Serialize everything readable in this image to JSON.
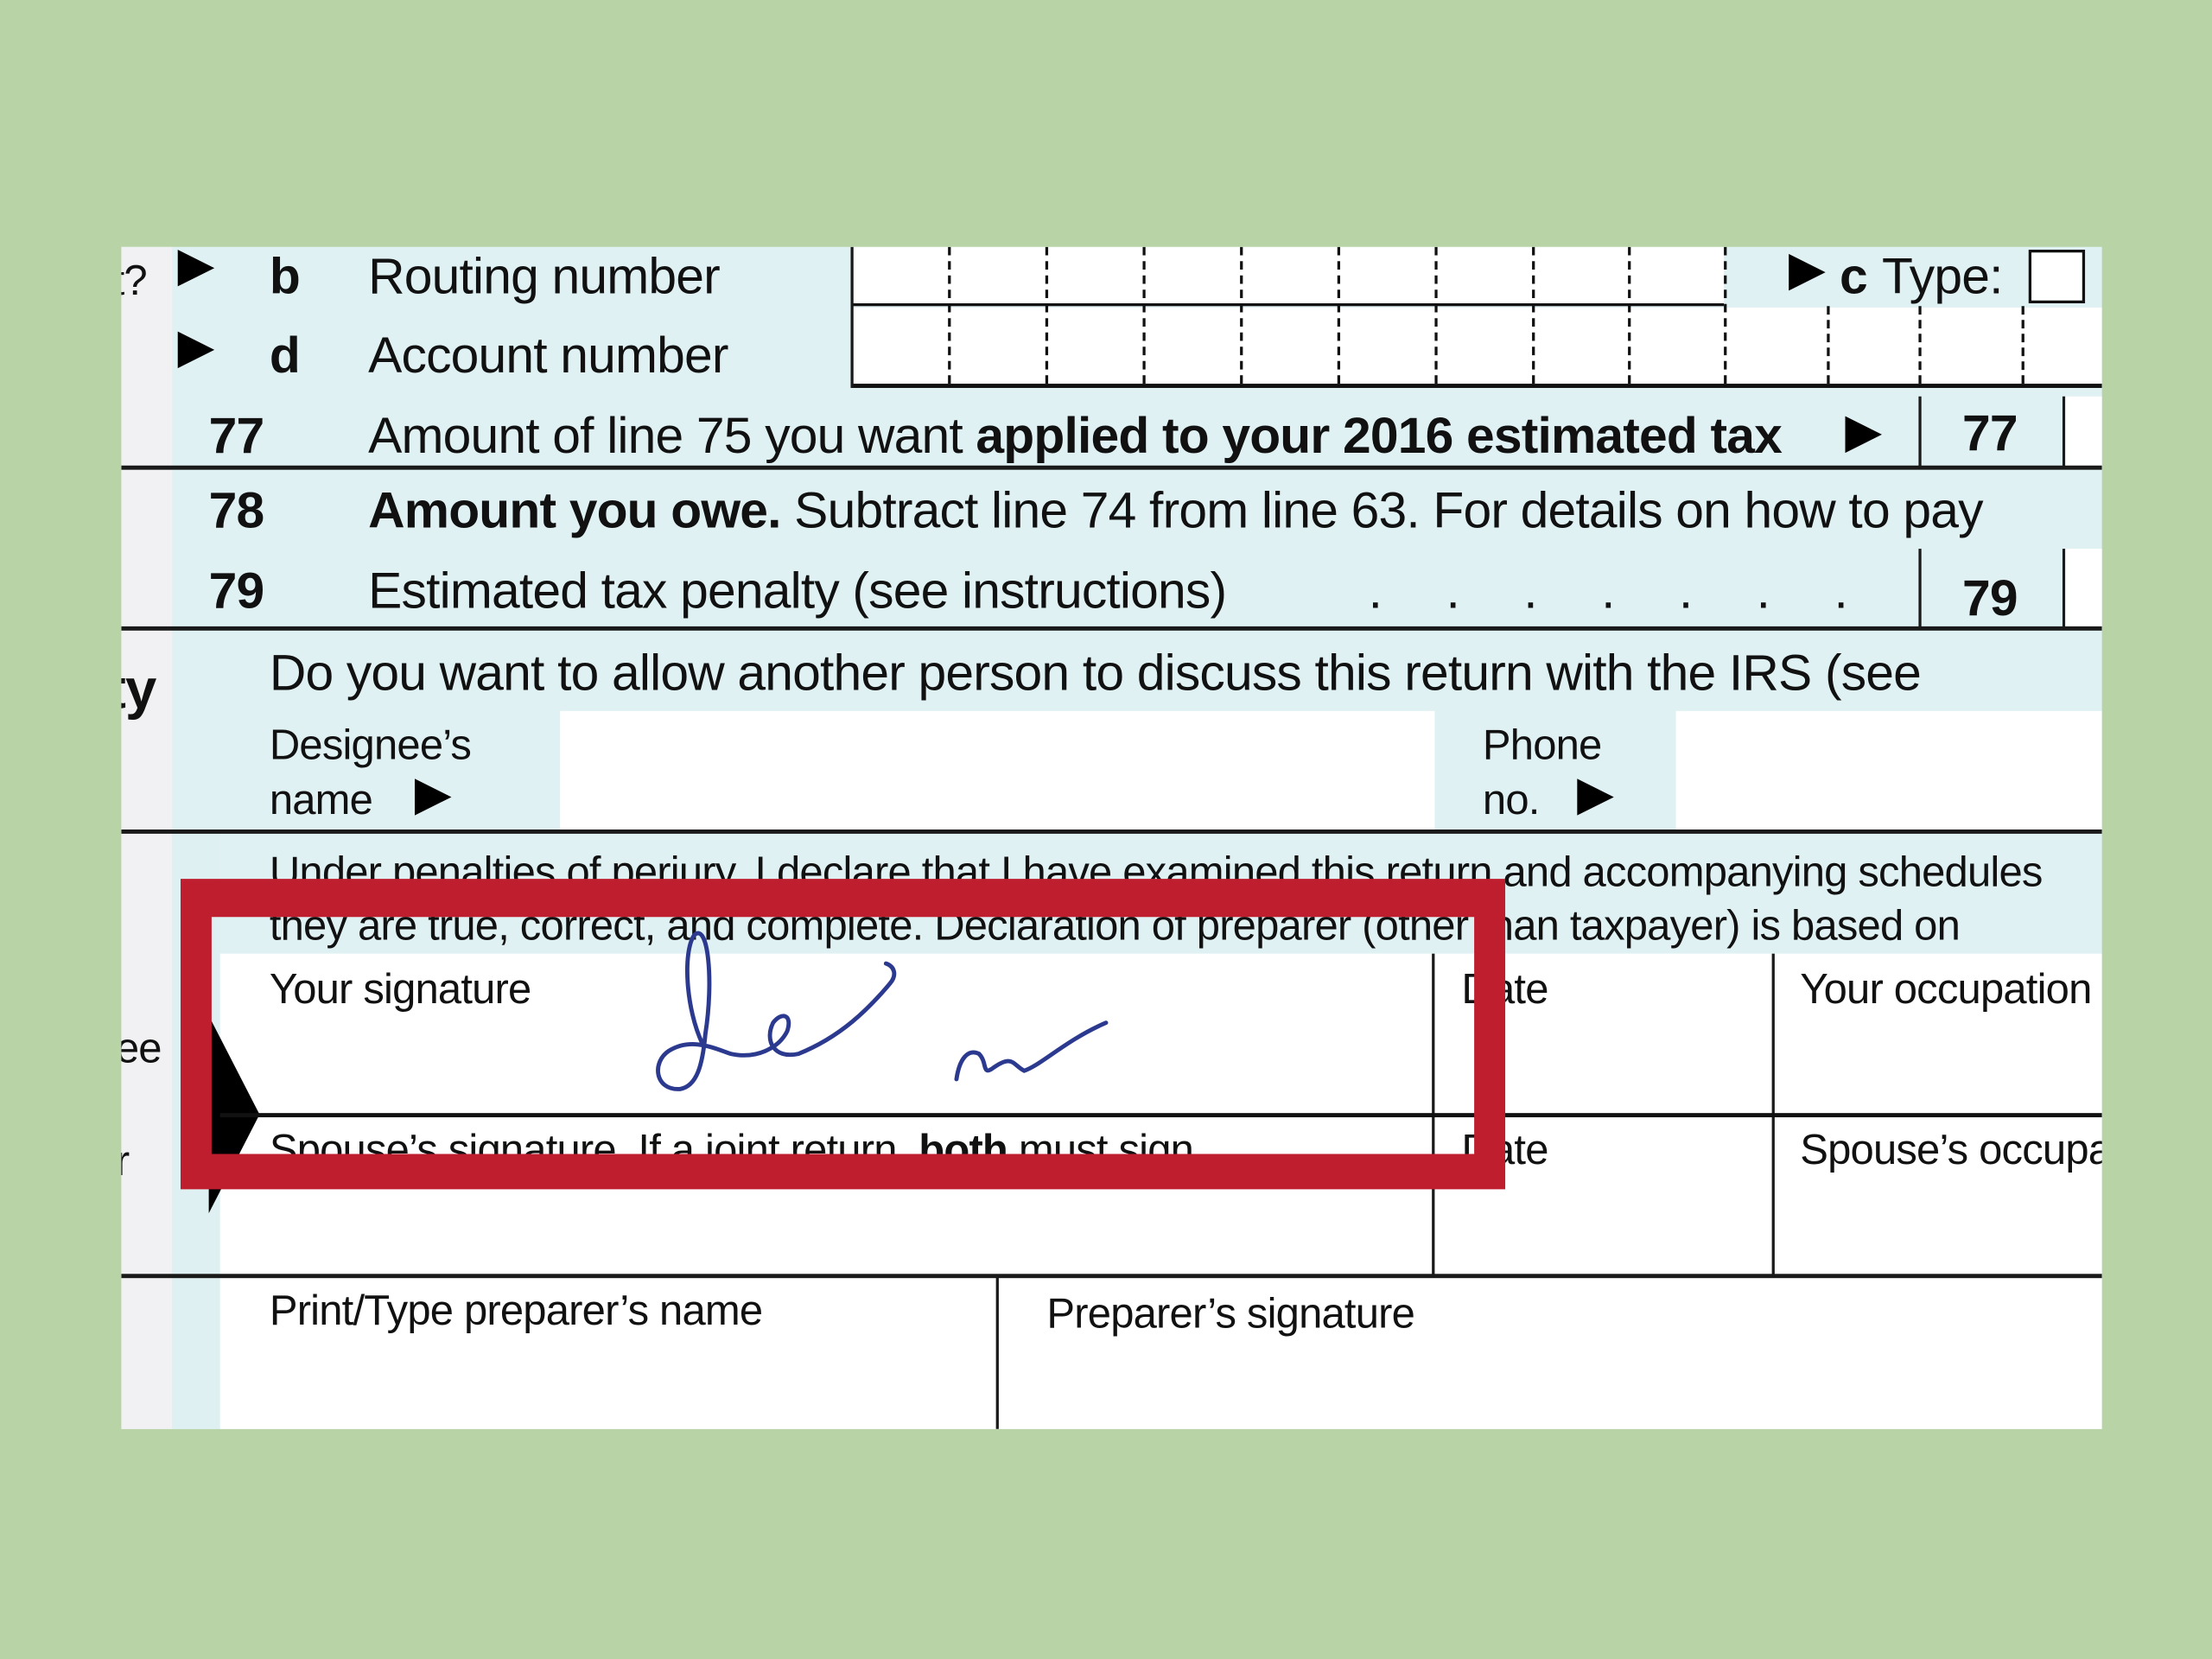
{
  "direct_deposit": {
    "left_fragment": "t?",
    "b_letter": "b",
    "routing_label": "Routing number",
    "c_label": "c",
    "type_label": "Type:",
    "d_letter": "d",
    "account_label": "Account number"
  },
  "lines": [
    {
      "num": "77",
      "text_normal": "Amount of line 75 you want ",
      "text_bold": "applied to your 2016 estimated tax",
      "box_num": "77"
    },
    {
      "num": "78",
      "text_bold": "Amount you owe.",
      "text_normal": " Subtract line 74 from line 63. For details on how to pay"
    },
    {
      "num": "79",
      "text_normal": "Estimated tax penalty (see instructions)",
      "dots": ". . . . . . .",
      "box_num": "79"
    }
  ],
  "third_party": {
    "side_fragment": "ty",
    "question": "Do you want to allow another person to discuss this return with the IRS (see",
    "designee_label_1": "Designee’s",
    "designee_label_2": "name",
    "phone_label_1": "Phone",
    "phone_label_2": "no."
  },
  "sign": {
    "side_fragment_1": "ee",
    "side_fragment_2": "r",
    "perjury_1": "Under penalties of perjury, I declare that I have examined this return and accompanying schedules",
    "perjury_2": "they are true, correct, and complete. Declaration of preparer (other than taxpayer) is based on",
    "your_signature": "Your signature",
    "date_1": "Date",
    "your_occupation": "Your occupation",
    "spouse_signature": "Spouse’s signature. If a joint return, ",
    "spouse_both": "both",
    "spouse_must": " must sign.",
    "date_2": "Date",
    "spouse_occupation": "Spouse’s occupation"
  },
  "preparer": {
    "name_label": "Print/Type preparer’s name",
    "signature_label": "Preparer’s signature"
  },
  "colors": {
    "background": "#b8d3a6",
    "form_tint": "#e0f1f3",
    "highlight_box": "#bf1e2e",
    "signature_ink": "#2b3a8f"
  }
}
